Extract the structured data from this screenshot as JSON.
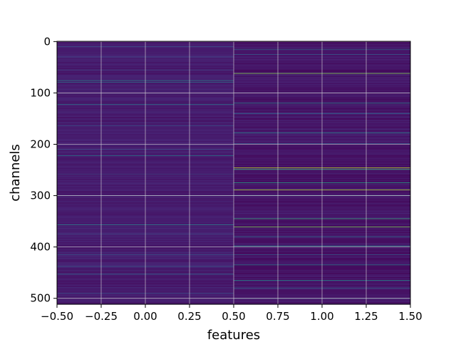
{
  "chart_data": {
    "type": "heatmap",
    "title": "",
    "xlabel": "features",
    "ylabel": "channels",
    "colormap": "viridis",
    "grid": true,
    "xlim": [
      -0.5,
      1.5
    ],
    "ylim": [
      511.5,
      -0.5
    ],
    "x_ticks": [
      -0.5,
      -0.25,
      0.0,
      0.25,
      0.5,
      0.75,
      1.0,
      1.25,
      1.5
    ],
    "x_tick_labels": [
      "−0.50",
      "−0.25",
      "0.00",
      "0.25",
      "0.50",
      "0.75",
      "1.00",
      "1.25",
      "1.50"
    ],
    "y_ticks": [
      0,
      100,
      200,
      300,
      400,
      500
    ],
    "y_tick_labels": [
      "0",
      "100",
      "200",
      "300",
      "400",
      "500"
    ],
    "features": [
      0,
      1
    ],
    "n_channels": 512,
    "background_level": [
      0.08,
      0.06
    ],
    "highlighted_channels": [
      {
        "feature": 0,
        "channel": 10,
        "value": 0.25
      },
      {
        "feature": 0,
        "channel": 30,
        "value": 0.22
      },
      {
        "feature": 0,
        "channel": 55,
        "value": 0.2
      },
      {
        "feature": 0,
        "channel": 76,
        "value": 0.45
      },
      {
        "feature": 0,
        "channel": 79,
        "value": 0.4
      },
      {
        "feature": 0,
        "channel": 122,
        "value": 0.4
      },
      {
        "feature": 0,
        "channel": 164,
        "value": 0.25
      },
      {
        "feature": 0,
        "channel": 210,
        "value": 0.25
      },
      {
        "feature": 0,
        "channel": 222,
        "value": 0.42
      },
      {
        "feature": 0,
        "channel": 258,
        "value": 0.22
      },
      {
        "feature": 0,
        "channel": 300,
        "value": 0.25
      },
      {
        "feature": 0,
        "channel": 357,
        "value": 0.45
      },
      {
        "feature": 0,
        "channel": 375,
        "value": 0.22
      },
      {
        "feature": 0,
        "channel": 398,
        "value": 0.02
      },
      {
        "feature": 0,
        "channel": 415,
        "value": 0.28
      },
      {
        "feature": 0,
        "channel": 438,
        "value": 0.3
      },
      {
        "feature": 0,
        "channel": 453,
        "value": 0.35
      },
      {
        "feature": 0,
        "channel": 490,
        "value": 0.25
      },
      {
        "feature": 1,
        "channel": 15,
        "value": 0.35
      },
      {
        "feature": 1,
        "channel": 25,
        "value": 0.3
      },
      {
        "feature": 1,
        "channel": 62,
        "value": 0.82
      },
      {
        "feature": 1,
        "channel": 120,
        "value": 0.45
      },
      {
        "feature": 1,
        "channel": 140,
        "value": 0.35
      },
      {
        "feature": 1,
        "channel": 178,
        "value": 0.45
      },
      {
        "feature": 1,
        "channel": 199,
        "value": 0.3
      },
      {
        "feature": 1,
        "channel": 246,
        "value": 0.9
      },
      {
        "feature": 1,
        "channel": 249,
        "value": 0.7
      },
      {
        "feature": 1,
        "channel": 275,
        "value": 0.6
      },
      {
        "feature": 1,
        "channel": 289,
        "value": 0.88
      },
      {
        "feature": 1,
        "channel": 300,
        "value": 0.4
      },
      {
        "feature": 1,
        "channel": 345,
        "value": 0.65
      },
      {
        "feature": 1,
        "channel": 361,
        "value": 0.8
      },
      {
        "feature": 1,
        "channel": 380,
        "value": 0.35
      },
      {
        "feature": 1,
        "channel": 398,
        "value": 0.5
      },
      {
        "feature": 1,
        "channel": 415,
        "value": 0.3
      },
      {
        "feature": 1,
        "channel": 435,
        "value": 0.45
      },
      {
        "feature": 1,
        "channel": 465,
        "value": 0.5
      },
      {
        "feature": 1,
        "channel": 480,
        "value": 0.35
      },
      {
        "feature": 1,
        "channel": 500,
        "value": 0.3
      }
    ]
  }
}
